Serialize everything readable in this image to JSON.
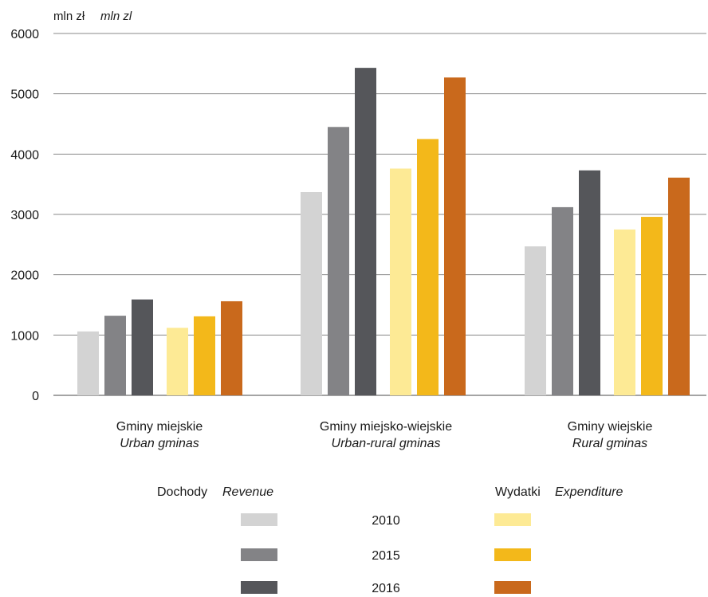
{
  "chart_data": {
    "type": "bar",
    "unit_pl": "mln zł",
    "unit_en": "mln zl",
    "ylim": [
      0,
      6000
    ],
    "yticks": [
      0,
      1000,
      2000,
      3000,
      4000,
      5000,
      6000
    ],
    "grid": true,
    "categories": [
      {
        "pl": "Gminy miejskie",
        "en": "Urban gminas"
      },
      {
        "pl": "Gminy miejsko-wiejskie",
        "en": "Urban-rural gminas"
      },
      {
        "pl": "Gminy wiejskie",
        "en": "Rural gminas"
      }
    ],
    "groups": [
      {
        "name_pl": "Dochody",
        "name_en": "Revenue",
        "series": [
          {
            "name": "2010",
            "color": "#d3d3d3",
            "values": [
              1060,
              3370,
              2470
            ]
          },
          {
            "name": "2015",
            "color": "#838386",
            "values": [
              1320,
              4450,
              3120
            ]
          },
          {
            "name": "2016",
            "color": "#55565a",
            "values": [
              1590,
              5430,
              3730
            ]
          }
        ]
      },
      {
        "name_pl": "Wydatki",
        "name_en": "Expenditure",
        "series": [
          {
            "name": "2010",
            "color": "#fdea95",
            "values": [
              1120,
              3760,
              2750
            ]
          },
          {
            "name": "2015",
            "color": "#f3b81a",
            "values": [
              1310,
              4250,
              2960
            ]
          },
          {
            "name": "2016",
            "color": "#c9691c",
            "values": [
              1560,
              5270,
              3610
            ]
          }
        ]
      }
    ],
    "legend": {
      "years": [
        "2010",
        "2015",
        "2016"
      ]
    }
  }
}
